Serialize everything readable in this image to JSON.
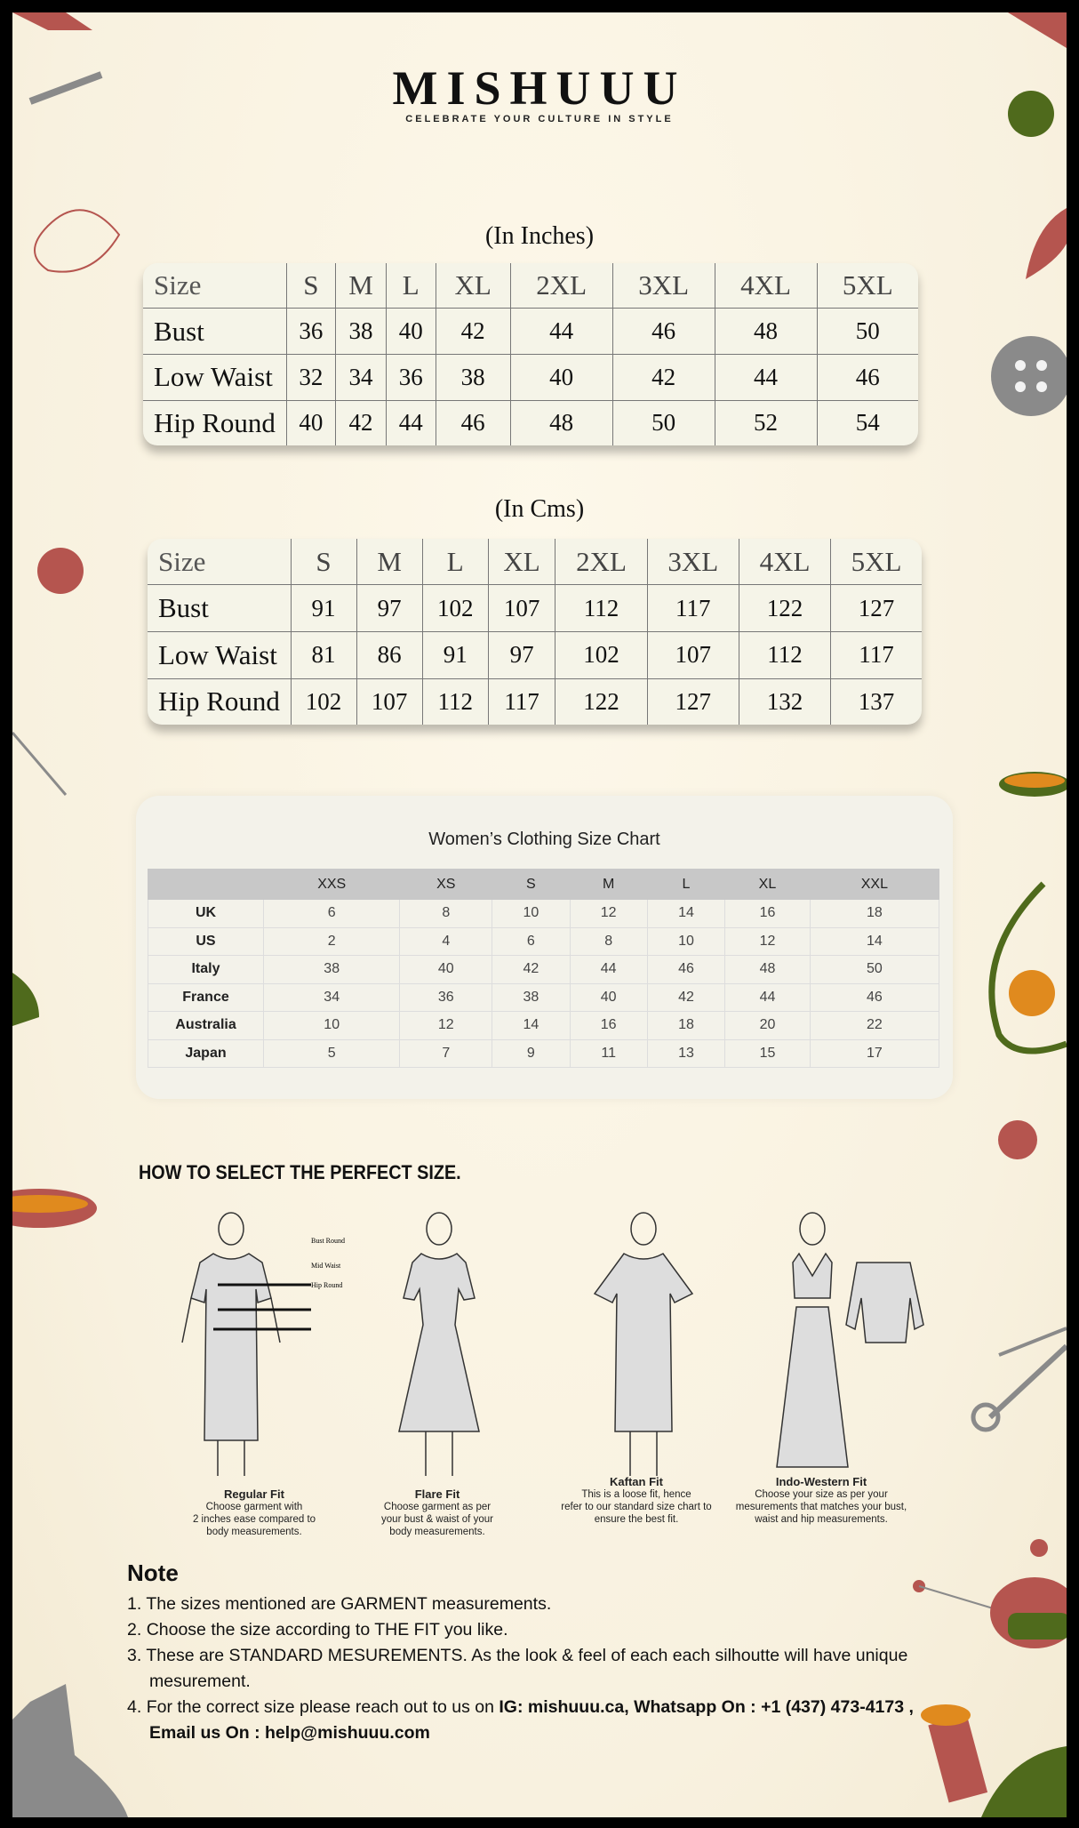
{
  "brand": {
    "logo": "MISHUUU",
    "tagline": "CELEBRATE YOUR CULTURE IN STYLE"
  },
  "inches": {
    "title": "(In Inches)",
    "header": [
      "Size",
      "S",
      "M",
      "L",
      "XL",
      "2XL",
      "3XL",
      "4XL",
      "5XL"
    ],
    "rows": [
      [
        "Bust",
        "36",
        "38",
        "40",
        "42",
        "44",
        "46",
        "48",
        "50"
      ],
      [
        "Low Waist",
        "32",
        "34",
        "36",
        "38",
        "40",
        "42",
        "44",
        "46"
      ],
      [
        "Hip Round",
        "40",
        "42",
        "44",
        "46",
        "48",
        "50",
        "52",
        "54"
      ]
    ]
  },
  "cms": {
    "title": "(In Cms)",
    "header": [
      "Size",
      "S",
      "M",
      "L",
      "XL",
      "2XL",
      "3XL",
      "4XL",
      "5XL"
    ],
    "rows": [
      [
        "Bust",
        "91",
        "97",
        "102",
        "107",
        "112",
        "117",
        "122",
        "127"
      ],
      [
        "Low Waist",
        "81",
        "86",
        "91",
        "97",
        "102",
        "107",
        "112",
        "117"
      ],
      [
        "Hip Round",
        "102",
        "107",
        "112",
        "117",
        "122",
        "127",
        "132",
        "137"
      ]
    ]
  },
  "womens": {
    "title": "Women’s Clothing Size Chart",
    "header": [
      "",
      "XXS",
      "XS",
      "S",
      "M",
      "L",
      "XL",
      "XXL"
    ],
    "rows": [
      [
        "UK",
        "6",
        "8",
        "10",
        "12",
        "14",
        "16",
        "18"
      ],
      [
        "US",
        "2",
        "4",
        "6",
        "8",
        "10",
        "12",
        "14"
      ],
      [
        "Italy",
        "38",
        "40",
        "42",
        "44",
        "46",
        "48",
        "50"
      ],
      [
        "France",
        "34",
        "36",
        "38",
        "40",
        "42",
        "44",
        "46"
      ],
      [
        "Australia",
        "10",
        "12",
        "14",
        "16",
        "18",
        "20",
        "22"
      ],
      [
        "Japan",
        "5",
        "7",
        "9",
        "11",
        "13",
        "15",
        "17"
      ]
    ]
  },
  "how": {
    "title": "HOW TO SELECT THE PERFECT SIZE.",
    "labels": {
      "bust": "Bust Round",
      "waist": "Mid Waist",
      "hip": "Hip Round"
    },
    "fits": [
      {
        "name": "Regular Fit",
        "desc": [
          "Choose garment with",
          "2 inches ease compared to",
          "body measurements."
        ]
      },
      {
        "name": "Flare Fit",
        "desc": [
          "Choose garment as per",
          "your bust & waist of your",
          "body measurements."
        ]
      },
      {
        "name": "Kaftan Fit",
        "desc": [
          "This is a loose fit, hence",
          "refer to our standard size chart to",
          "ensure the best fit."
        ]
      },
      {
        "name": "Indo-Western Fit",
        "desc": [
          "Choose your size as per your",
          "mesurements that matches your bust,",
          "waist and hip measurements."
        ]
      }
    ]
  },
  "note": {
    "title": "Note",
    "items": [
      {
        "num": "1.",
        "text": "The sizes mentioned are GARMENT measurements."
      },
      {
        "num": "2.",
        "text": "Choose the size according to THE FIT you like."
      },
      {
        "num": "3.",
        "text": "These are STANDARD MESUREMENTS. As the look & feel of each each silhoutte will have unique mesurement."
      },
      {
        "num": "4.",
        "text": "For the correct size please reach out to us on ",
        "bold": "IG: mishuuu.ca, Whatsapp On : +1 (437) 473-4173 , Email us On : help@mishuuu.com"
      }
    ]
  },
  "colors": {
    "red": "#b5554f",
    "green": "#4f6a1c",
    "orange": "#e08a1e",
    "gray": "#8a8a8a"
  }
}
